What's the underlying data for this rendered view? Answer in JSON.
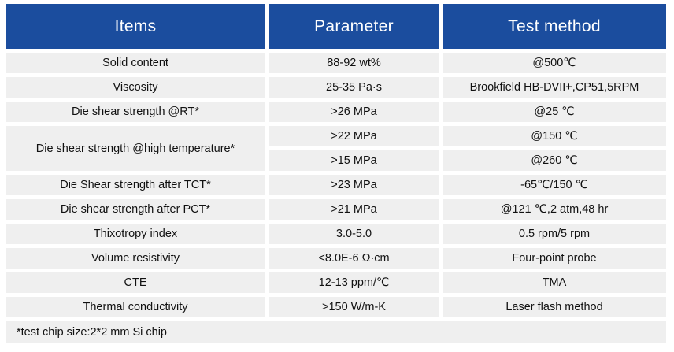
{
  "table": {
    "headers": {
      "items": "Items",
      "parameter": "Parameter",
      "test_method": "Test method"
    },
    "rows": [
      {
        "item": "Solid content",
        "item_rowspan": 1,
        "parameter": "88-92 wt%",
        "method": "@500℃"
      },
      {
        "item": "Viscosity",
        "item_rowspan": 1,
        "parameter": "25-35 Pa·s",
        "method": "Brookfield HB-DVII+,CP51,5RPM"
      },
      {
        "item": "Die shear strength @RT*",
        "item_rowspan": 1,
        "parameter": ">26 MPa",
        "method": "@25 ℃"
      },
      {
        "item": "Die shear strength @high temperature*",
        "item_rowspan": 2,
        "parameter": ">22 MPa",
        "method": "@150 ℃"
      },
      {
        "item": null,
        "item_rowspan": 0,
        "parameter": ">15 MPa",
        "method": "@260 ℃"
      },
      {
        "item": "Die Shear strength after TCT*",
        "item_rowspan": 1,
        "parameter": ">23 MPa",
        "method": "-65℃/150 ℃"
      },
      {
        "item": "Die shear strength after PCT*",
        "item_rowspan": 1,
        "parameter": ">21 MPa",
        "method": "@121 ℃,2 atm,48 hr"
      },
      {
        "item": "Thixotropy index",
        "item_rowspan": 1,
        "parameter": "3.0-5.0",
        "method": "0.5 rpm/5 rpm"
      },
      {
        "item": "Volume resistivity",
        "item_rowspan": 1,
        "parameter": "<8.0E-6 Ω·cm",
        "method": "Four-point probe"
      },
      {
        "item": "CTE",
        "item_rowspan": 1,
        "parameter": "12-13 ppm/℃",
        "method": "TMA"
      },
      {
        "item": "Thermal conductivity",
        "item_rowspan": 1,
        "parameter": ">150 W/m-K",
        "method": "Laser flash method"
      }
    ],
    "footnote": "*test chip size:2*2 mm Si chip"
  },
  "colors": {
    "header_bg": "#1B4D9E",
    "header_text": "#FFFFFF",
    "cell_bg": "#EFEFEF",
    "cell_text": "#111111",
    "page_bg": "#FFFFFF"
  }
}
